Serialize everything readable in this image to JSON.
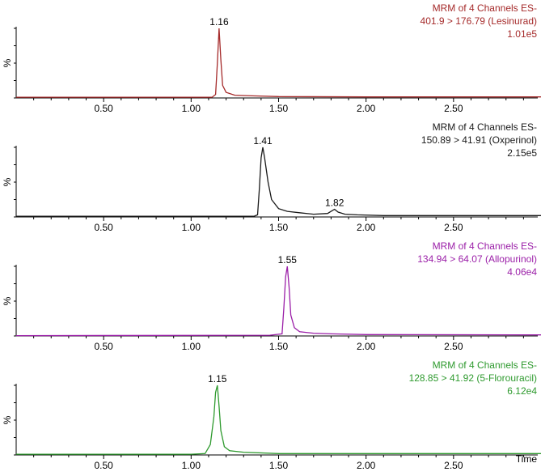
{
  "x_label": "Time",
  "chart_data": [
    {
      "type": "line",
      "title": "MRM of 4 Channels ES-",
      "subtitle": "401.9 > 176.79 (Lesinurad)",
      "intensity": "1.01e5",
      "ylabel": "%",
      "color": "#a52a2a",
      "xlim": [
        0.0,
        3.0
      ],
      "ylim": [
        0,
        100
      ],
      "x_ticks": [
        "0.50",
        "1.00",
        "1.50",
        "2.00",
        "2.50"
      ],
      "peak_labels": [
        {
          "x": 1.16,
          "y": 100,
          "label": "1.16"
        }
      ],
      "x": [
        0.0,
        1.0,
        1.12,
        1.14,
        1.15,
        1.16,
        1.17,
        1.18,
        1.2,
        1.25,
        1.35,
        1.5,
        2.0,
        3.0
      ],
      "y": [
        1,
        1,
        1,
        5,
        50,
        100,
        55,
        18,
        8,
        4,
        3,
        2,
        1.5,
        1.5
      ]
    },
    {
      "type": "line",
      "title": "MRM of 4 Channels ES-",
      "subtitle": "150.89 > 41.91 (Oxperinol)",
      "intensity": "2.15e5",
      "ylabel": "%",
      "color": "#1a1a1a",
      "xlim": [
        0.0,
        3.0
      ],
      "ylim": [
        0,
        100
      ],
      "x_ticks": [
        "0.50",
        "1.00",
        "1.50",
        "2.00",
        "2.50"
      ],
      "peak_labels": [
        {
          "x": 1.41,
          "y": 100,
          "label": "1.41"
        },
        {
          "x": 1.82,
          "y": 11,
          "label": "1.82"
        }
      ],
      "x": [
        0.0,
        1.36,
        1.38,
        1.39,
        1.4,
        1.41,
        1.42,
        1.44,
        1.46,
        1.5,
        1.55,
        1.62,
        1.7,
        1.78,
        1.8,
        1.82,
        1.84,
        1.88,
        1.95,
        2.1,
        3.0
      ],
      "y": [
        1,
        1,
        3,
        40,
        85,
        100,
        85,
        50,
        25,
        12,
        8,
        6,
        4,
        5,
        8,
        11,
        7,
        4,
        3,
        2,
        2
      ]
    },
    {
      "type": "line",
      "title": "MRM of 4 Channels ES-",
      "subtitle": "134.94 > 64.07 (Allopurinol)",
      "intensity": "4.06e4",
      "ylabel": "%",
      "color": "#9b1fa8",
      "xlim": [
        0.0,
        3.0
      ],
      "ylim": [
        0,
        100
      ],
      "x_ticks": [
        "0.50",
        "1.00",
        "1.50",
        "2.00",
        "2.50"
      ],
      "peak_labels": [
        {
          "x": 1.55,
          "y": 100,
          "label": "1.55"
        }
      ],
      "x": [
        0.0,
        1.45,
        1.52,
        1.53,
        1.54,
        1.55,
        1.56,
        1.57,
        1.59,
        1.62,
        1.7,
        1.8,
        2.0,
        3.0
      ],
      "y": [
        0.5,
        1,
        3,
        40,
        85,
        100,
        70,
        30,
        12,
        6,
        4,
        3,
        2,
        1.5
      ]
    },
    {
      "type": "line",
      "title": "MRM of 4 Channels ES-",
      "subtitle": "128.85 > 41.92 (5-Florouracil)",
      "intensity": "6.12e4",
      "ylabel": "%",
      "color": "#2e9a2e",
      "xlim": [
        0.0,
        3.0
      ],
      "ylim": [
        0,
        100
      ],
      "x_ticks": [
        "0.50",
        "1.00",
        "1.50",
        "2.00",
        "2.50"
      ],
      "peak_labels": [
        {
          "x": 1.15,
          "y": 100,
          "label": "1.15"
        }
      ],
      "x": [
        0.0,
        1.0,
        1.08,
        1.11,
        1.13,
        1.14,
        1.15,
        1.16,
        1.17,
        1.19,
        1.22,
        1.3,
        1.5,
        3.0
      ],
      "y": [
        1,
        1,
        2,
        15,
        55,
        90,
        100,
        70,
        35,
        12,
        6,
        4,
        2,
        2
      ]
    }
  ]
}
